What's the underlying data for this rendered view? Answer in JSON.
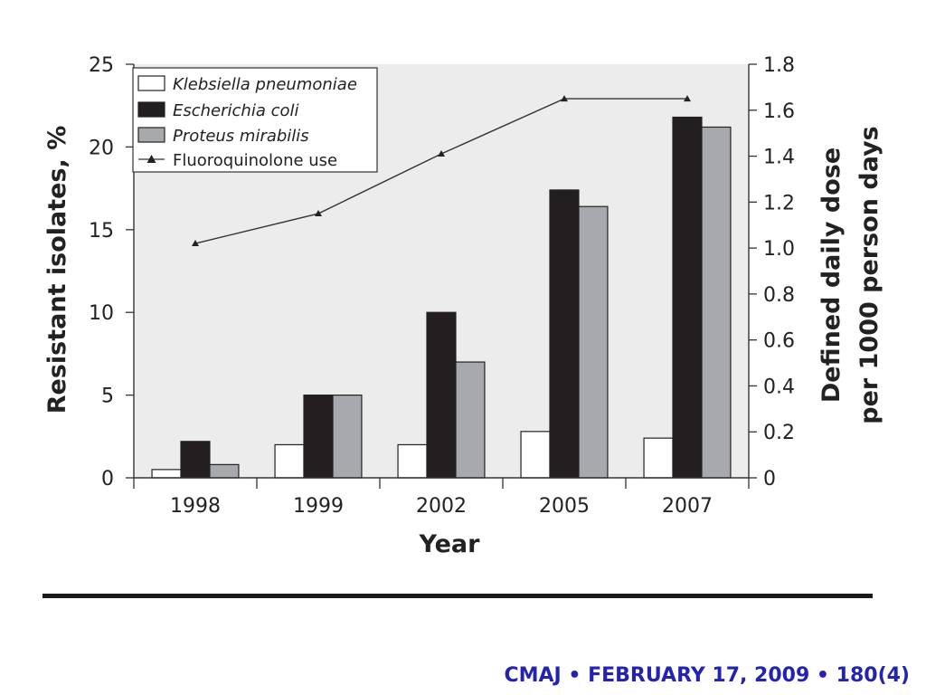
{
  "chart_data": {
    "type": "bar",
    "categories": [
      "1998",
      "1999",
      "2002",
      "2005",
      "2007"
    ],
    "series": [
      {
        "name": "Klebsiella pneumoniae",
        "values": [
          0.5,
          2.0,
          2.0,
          2.8,
          2.4
        ],
        "color": "#ffffff",
        "axis": "left"
      },
      {
        "name": "Escherichia coli",
        "values": [
          2.2,
          5.0,
          10.0,
          17.4,
          21.8
        ],
        "color": "#231f20",
        "axis": "left"
      },
      {
        "name": "Proteus mirabilis",
        "values": [
          0.8,
          5.0,
          7.0,
          16.4,
          21.2
        ],
        "color": "#a7a9ac",
        "axis": "left"
      }
    ],
    "line_series": {
      "name": "Fluoroquinolone use",
      "type": "line",
      "marker": "triangle",
      "values": [
        1.02,
        1.15,
        1.41,
        1.65,
        1.65
      ],
      "axis": "right"
    },
    "xlabel": "Year",
    "ylabel_left": "Resistant isolates, %",
    "ylabel_right_lines": [
      "Defined daily dose",
      "per 1000 person days"
    ],
    "ylim_left": [
      0,
      25
    ],
    "ylim_right": [
      0,
      1.8
    ],
    "yticks_left": [
      "0",
      "5",
      "10",
      "15",
      "20",
      "25"
    ],
    "yticks_right": [
      "0",
      "0.2",
      "0.4",
      "0.6",
      "0.8",
      "1.0",
      "1.2",
      "1.4",
      "1.6",
      "1.8"
    ],
    "legend_position": "top-left",
    "grid": false,
    "plot_background": "#ececec"
  },
  "footer": {
    "citation": "CMAJ • FEBRUARY 17, 2009 • 180(4)",
    "citation_color": "#2323b0"
  }
}
